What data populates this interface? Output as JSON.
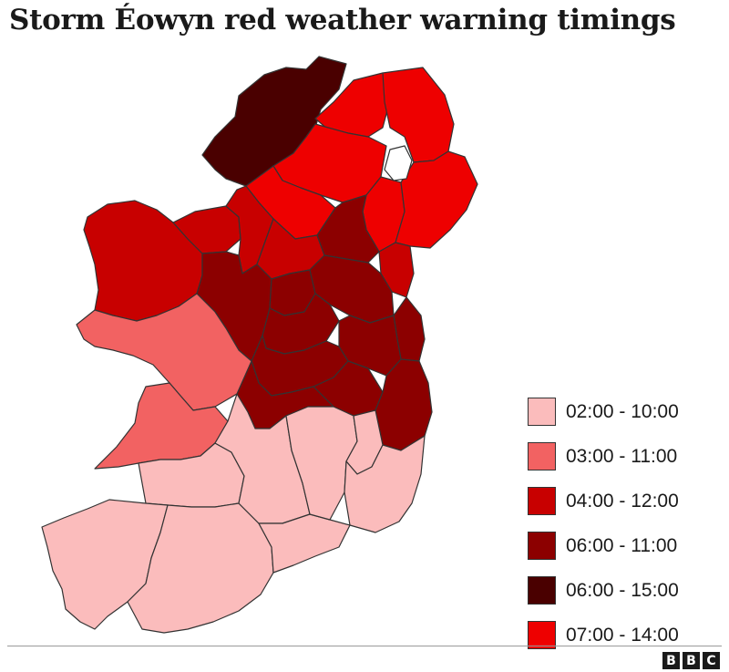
{
  "title": "Storm Éowyn red weather warning timings",
  "legend": [
    {
      "label": "02:00 - 10:00",
      "color": "#fbbcbc"
    },
    {
      "label": "03:00 - 11:00",
      "color": "#f26262"
    },
    {
      "label": "04:00 - 12:00",
      "color": "#c80000"
    },
    {
      "label": "06:00 - 11:00",
      "color": "#8c0000"
    },
    {
      "label": "06:00 - 15:00",
      "color": "#4a0000"
    },
    {
      "label": "07:00 - 14:00",
      "color": "#ee0000"
    }
  ],
  "logo": {
    "letters": [
      "B",
      "B",
      "C"
    ]
  }
}
